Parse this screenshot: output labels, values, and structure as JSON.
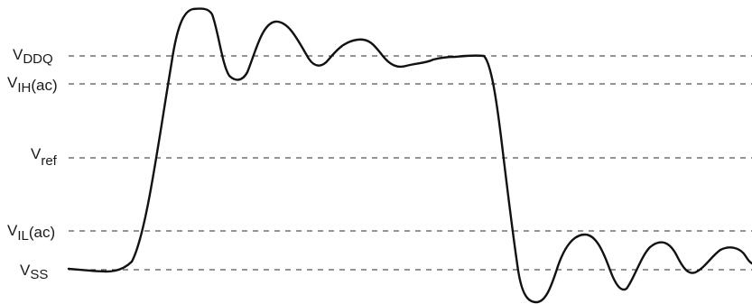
{
  "levels": {
    "vddq": {
      "base": "V",
      "sub": "DDQ",
      "suffix": ""
    },
    "vih": {
      "base": "V",
      "sub": "IH",
      "suffix": "(ac)"
    },
    "vref": {
      "base": "V",
      "sub": "ref",
      "suffix": ""
    },
    "vil": {
      "base": "V",
      "sub": "IL",
      "suffix": "(ac)"
    },
    "vss": {
      "base": "V",
      "sub": "SS",
      "suffix": ""
    }
  },
  "colors": {
    "signal": "#111111",
    "reference_lines": "#2a2a2a",
    "labels": "#1a1a1a",
    "background": "#ffffff"
  }
}
